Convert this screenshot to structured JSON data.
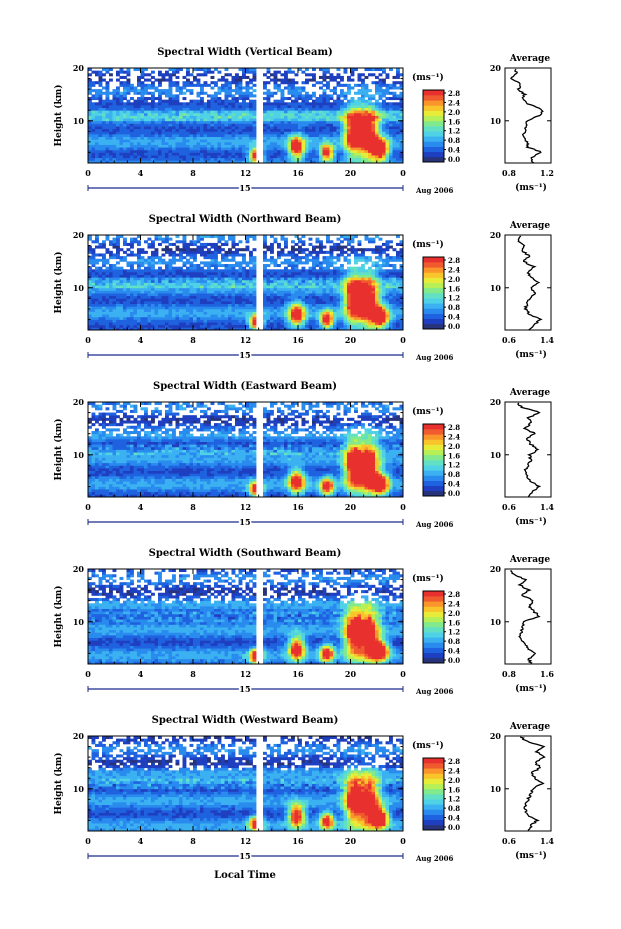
{
  "figure": {
    "xlabel": "Local Time",
    "ylabel": "Height (km)",
    "date_label": "Aug 2006",
    "day_label": "15",
    "unit_label": "(ms⁻¹)",
    "avg_title": "Average",
    "avg_xlabel": "(ms⁻¹)",
    "colormap": [
      "#27337a",
      "#1e3fbf",
      "#1f62e0",
      "#2a8bef",
      "#3bb1f2",
      "#4fd1e6",
      "#62e0c4",
      "#82ea8c",
      "#b7ef57",
      "#e6ec37",
      "#f9c52a",
      "#f9952a",
      "#ef5a2e",
      "#e8312e"
    ],
    "gap_color": "#ffffff"
  },
  "chart_data": [
    {
      "type": "heatmap",
      "title": "Spectral Width (Vertical Beam)",
      "x": [
        0,
        4,
        8,
        12,
        16,
        20,
        0
      ],
      "xlim": [
        0,
        24
      ],
      "ylim": [
        2,
        20
      ],
      "yticks": [
        10,
        20
      ],
      "colorbar": {
        "ticks": [
          "2.8",
          "2.4",
          "2.0",
          "1.6",
          "1.2",
          "0.8",
          "0.4",
          "0.0"
        ],
        "range": [
          0,
          2.8
        ]
      },
      "average": {
        "xlim": [
          0.8,
          1.2
        ],
        "xticks": [
          "0.8",
          "1.2"
        ],
        "yticks": [
          10,
          20
        ],
        "heights": [
          2,
          3,
          4,
          5,
          6,
          7,
          8,
          9,
          10,
          11,
          12,
          13,
          14,
          15,
          16,
          17,
          18,
          19,
          20
        ],
        "values": [
          1.05,
          1.02,
          1.12,
          1.0,
          0.99,
          0.96,
          0.97,
          0.98,
          0.99,
          1.1,
          1.13,
          1.02,
          0.95,
          0.97,
          0.92,
          0.94,
          0.86,
          0.9,
          0.88
        ]
      }
    },
    {
      "type": "heatmap",
      "title": "Spectral Width (Northward Beam)",
      "x": [
        0,
        4,
        8,
        12,
        16,
        20,
        0
      ],
      "xlim": [
        0,
        24
      ],
      "ylim": [
        2,
        20
      ],
      "yticks": [
        10,
        20
      ],
      "colorbar": {
        "ticks": [
          "2.8",
          "2.4",
          "2.0",
          "1.6",
          "1.2",
          "0.8",
          "0.4",
          "0.0"
        ],
        "range": [
          0,
          2.8
        ]
      },
      "average": {
        "xlim": [
          0.6,
          1.4
        ],
        "xticks": [
          "0.6",
          "1.4"
        ],
        "yticks": [
          10,
          20
        ],
        "heights": [
          2,
          3,
          4,
          5,
          6,
          7,
          8,
          9,
          10,
          11,
          12,
          13,
          14,
          15,
          16,
          17,
          18,
          19,
          20
        ],
        "values": [
          1.0,
          1.1,
          1.22,
          1.02,
          0.96,
          0.98,
          1.02,
          1.12,
          1.05,
          1.2,
          1.05,
          1.0,
          1.1,
          0.92,
          1.02,
          0.9,
          0.95,
          0.82,
          0.88
        ]
      }
    },
    {
      "type": "heatmap",
      "title": "Spectral Width (Eastward Beam)",
      "x": [
        0,
        4,
        8,
        12,
        16,
        20,
        0
      ],
      "xlim": [
        0,
        24
      ],
      "ylim": [
        2,
        20
      ],
      "yticks": [
        10,
        20
      ],
      "colorbar": {
        "ticks": [
          "2.8",
          "2.4",
          "2.0",
          "1.6",
          "1.2",
          "0.8",
          "0.4",
          "0.0"
        ],
        "range": [
          0,
          2.8
        ]
      },
      "average": {
        "xlim": [
          0.6,
          1.4
        ],
        "xticks": [
          "0.6",
          "1.4"
        ],
        "yticks": [
          10,
          20
        ],
        "heights": [
          2,
          3,
          4,
          5,
          6,
          7,
          8,
          9,
          10,
          11,
          12,
          13,
          14,
          15,
          16,
          17,
          18,
          19,
          20
        ],
        "values": [
          1.0,
          1.08,
          1.2,
          1.05,
          0.98,
          0.95,
          1.0,
          1.05,
          1.02,
          1.18,
          1.05,
          0.98,
          1.12,
          0.95,
          1.05,
          1.0,
          1.2,
          0.9,
          0.8
        ]
      }
    },
    {
      "type": "heatmap",
      "title": "Spectral Width (Southward Beam)",
      "x": [
        0,
        4,
        8,
        12,
        16,
        20,
        0
      ],
      "xlim": [
        0,
        24
      ],
      "ylim": [
        2,
        20
      ],
      "yticks": [
        10,
        20
      ],
      "colorbar": {
        "ticks": [
          "2.8",
          "2.4",
          "2.0",
          "1.6",
          "1.2",
          "0.8",
          "0.4",
          "0.0"
        ],
        "range": [
          0,
          2.8
        ]
      },
      "average": {
        "xlim": [
          0.8,
          1.6
        ],
        "xticks": [
          "0.8",
          "1.6"
        ],
        "yticks": [
          10,
          20
        ],
        "heights": [
          2,
          3,
          4,
          5,
          6,
          7,
          8,
          9,
          10,
          11,
          12,
          13,
          14,
          15,
          16,
          17,
          18,
          19,
          20
        ],
        "values": [
          1.25,
          1.22,
          1.32,
          1.2,
          1.12,
          1.05,
          1.08,
          1.1,
          1.12,
          1.4,
          1.3,
          1.22,
          1.3,
          1.1,
          1.22,
          1.05,
          1.15,
          0.95,
          0.9
        ]
      }
    },
    {
      "type": "heatmap",
      "title": "Spectral Width (Westward Beam)",
      "x": [
        0,
        4,
        8,
        12,
        16,
        20,
        0
      ],
      "xlim": [
        0,
        24
      ],
      "ylim": [
        2,
        20
      ],
      "yticks": [
        10,
        20
      ],
      "colorbar": {
        "ticks": [
          "2.8",
          "2.4",
          "2.0",
          "1.6",
          "1.2",
          "0.8",
          "0.4",
          "0.0"
        ],
        "range": [
          0,
          2.8
        ]
      },
      "average": {
        "xlim": [
          0.6,
          1.4
        ],
        "xticks": [
          "0.6",
          "1.4"
        ],
        "yticks": [
          10,
          20
        ],
        "heights": [
          2,
          3,
          4,
          5,
          6,
          7,
          8,
          9,
          10,
          11,
          12,
          13,
          14,
          15,
          16,
          17,
          18,
          19,
          20
        ],
        "values": [
          1.02,
          1.05,
          1.15,
          1.0,
          0.95,
          0.96,
          1.0,
          1.05,
          1.08,
          1.25,
          1.12,
          1.05,
          1.22,
          1.12,
          1.3,
          1.15,
          1.28,
          0.98,
          0.85
        ]
      }
    }
  ]
}
